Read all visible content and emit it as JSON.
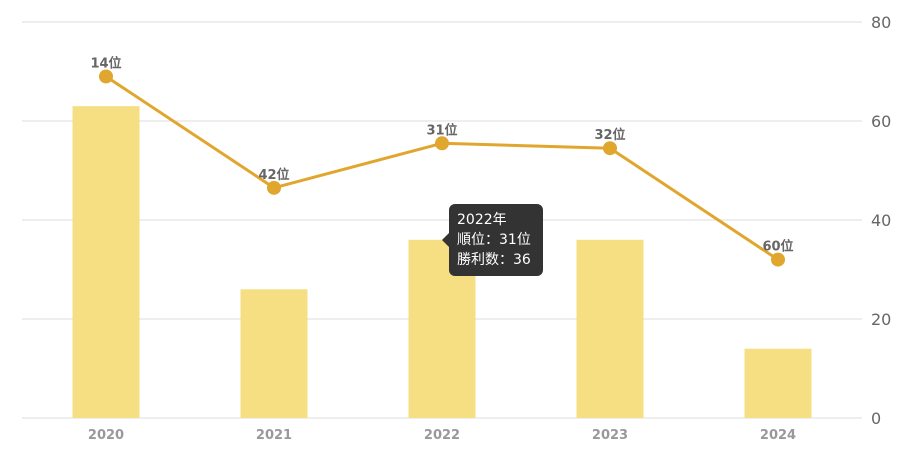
{
  "colors": {
    "bar": "#F6DF83",
    "line": "#E0A62E",
    "grid": "#DDDDDD",
    "axis_text": "#666666",
    "category_text": "#999999",
    "rank_text": "#666666",
    "tooltip_bg": "#333333"
  },
  "chart_data": {
    "type": "bar",
    "categories": [
      "2020",
      "2021",
      "2022",
      "2023",
      "2024"
    ],
    "series": [
      {
        "type": "bar",
        "values": [
          63,
          26,
          36,
          36,
          14
        ]
      },
      {
        "type": "line",
        "values": [
          69,
          46.5,
          55.5,
          54.5,
          32
        ],
        "labels": [
          "14位",
          "42位",
          "31位",
          "32位",
          "60位"
        ]
      }
    ],
    "y_axis": {
      "min": 0,
      "max": 80,
      "ticks": [
        0,
        20,
        40,
        60,
        80
      ],
      "position": "right"
    },
    "grid": true,
    "legend": "none"
  },
  "tooltip": {
    "title": "2022年",
    "rank_line": "順位：31位",
    "wins_line": "勝利数：36"
  }
}
